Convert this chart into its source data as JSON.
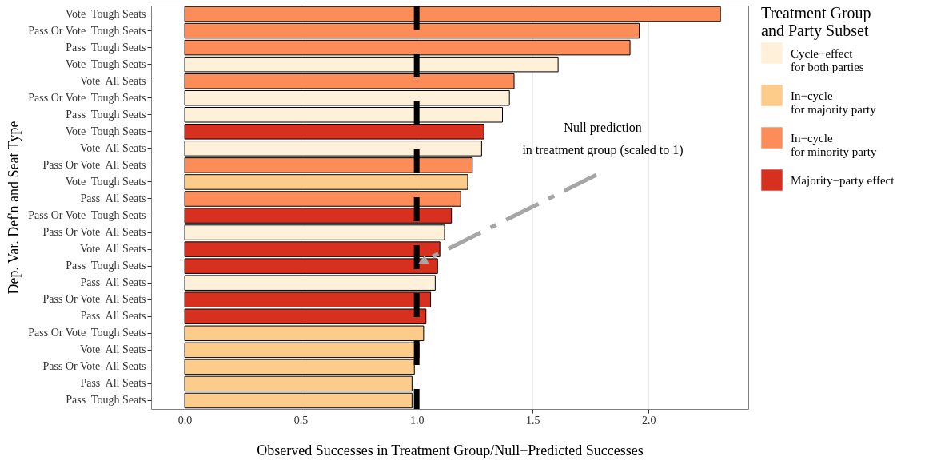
{
  "chart_data": {
    "type": "bar",
    "orientation": "horizontal",
    "annotations": [
      "Null prediction\nin treatment group (scaled to 1)"
    ],
    "xlabel": "Observed Successes in Treatment Group/Null−Predicted Successes",
    "ylabel": "Dep. Var. Def'n and Seat Type",
    "legend_title": "Treatment Group\nand Party Subset",
    "legend": "right",
    "grid": "x",
    "categories": [
      "Vote  Tough Seats",
      "Pass Or Vote  Tough Seats",
      "Pass  Tough Seats",
      "Vote  Tough Seats",
      "Vote  All Seats",
      "Pass Or Vote  Tough Seats",
      "Pass  Tough Seats",
      "Vote  Tough Seats",
      "Vote  All Seats",
      "Pass Or Vote  All Seats",
      "Vote  Tough Seats",
      "Pass  All Seats",
      "Pass Or Vote  Tough Seats",
      "Pass Or Vote  All Seats",
      "Vote  All Seats",
      "Pass  Tough Seats",
      "Pass  All Seats",
      "Pass Or Vote  All Seats",
      "Pass  All Seats",
      "Pass Or Vote  Tough Seats",
      "Vote  All Seats",
      "Pass Or Vote  All Seats",
      "Pass  All Seats",
      "Pass  Tough Seats"
    ],
    "series": [
      {
        "name": "Cycle−effect\nfor both parties",
        "color": "#fef0d9",
        "values": [
          null,
          null,
          null,
          1.61,
          null,
          1.4,
          1.37,
          null,
          1.28,
          null,
          null,
          null,
          null,
          1.12,
          null,
          null,
          1.08,
          null,
          null,
          null,
          null,
          null,
          null,
          null
        ]
      },
      {
        "name": "In−cycle\nfor majority party",
        "color": "#fdcc8a",
        "values": [
          null,
          null,
          null,
          null,
          null,
          null,
          null,
          null,
          null,
          null,
          1.22,
          null,
          null,
          null,
          null,
          null,
          null,
          null,
          null,
          1.03,
          1.01,
          0.99,
          0.98,
          0.98
        ]
      },
      {
        "name": "In−cycle\nfor minority party",
        "color": "#fc8d59",
        "values": [
          2.31,
          1.96,
          1.92,
          null,
          1.42,
          null,
          null,
          null,
          null,
          1.24,
          null,
          1.19,
          null,
          null,
          null,
          null,
          null,
          null,
          null,
          null,
          null,
          null,
          null,
          null
        ]
      },
      {
        "name": "Majority−party effect",
        "color": "#d7301f",
        "values": [
          null,
          null,
          null,
          null,
          null,
          null,
          null,
          1.29,
          null,
          null,
          null,
          null,
          1.15,
          null,
          1.1,
          1.09,
          null,
          1.06,
          1.04,
          null,
          null,
          null,
          null,
          null
        ]
      }
    ],
    "xlim": [
      -0.145,
      2.43
    ],
    "xticks": [
      {
        "value": 0,
        "label": "0.0"
      },
      0.5,
      {
        "value": 1,
        "label": "1.0"
      },
      1.5,
      {
        "value": 2,
        "label": "2.0"
      }
    ],
    "ref_lines": [
      {
        "axis": "x",
        "value": 1,
        "color": "#000000",
        "line_style": "dashed"
      }
    ]
  }
}
